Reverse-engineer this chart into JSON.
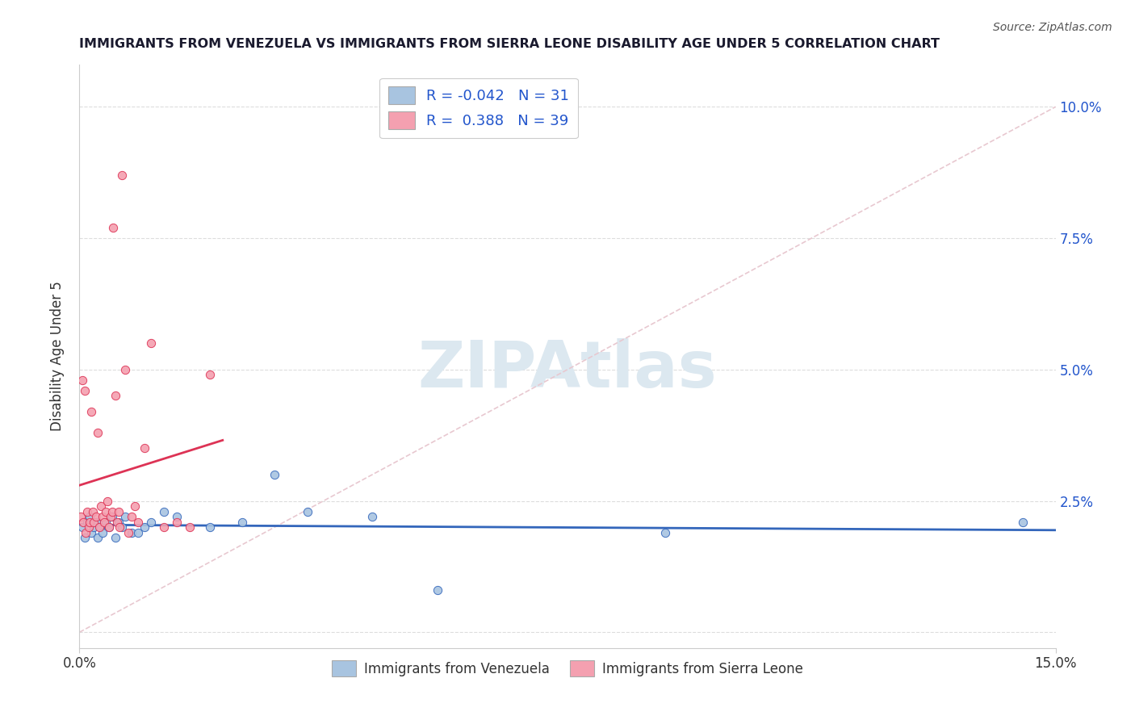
{
  "title": "IMMIGRANTS FROM VENEZUELA VS IMMIGRANTS FROM SIERRA LEONE DISABILITY AGE UNDER 5 CORRELATION CHART",
  "source": "Source: ZipAtlas.com",
  "ylabel": "Disability Age Under 5",
  "xlim": [
    0.0,
    15.0
  ],
  "ylim": [
    -0.3,
    10.8
  ],
  "ytick_vals": [
    0.0,
    2.5,
    5.0,
    7.5,
    10.0
  ],
  "ytick_labels": [
    "",
    "2.5%",
    "5.0%",
    "7.5%",
    "10.0%"
  ],
  "xtick_vals": [
    0.0,
    15.0
  ],
  "xtick_labels": [
    "0.0%",
    "15.0%"
  ],
  "venezuela_R": -0.042,
  "venezuela_N": 31,
  "sierraleone_R": 0.388,
  "sierraleone_N": 39,
  "venezuela_color": "#a8c4e0",
  "sierraleone_color": "#f4a0b0",
  "trend_venezuela_color": "#3366bb",
  "trend_sierraleone_color": "#dd3355",
  "venezuela_x": [
    0.05,
    0.08,
    0.12,
    0.15,
    0.18,
    0.22,
    0.25,
    0.28,
    0.32,
    0.35,
    0.4,
    0.45,
    0.5,
    0.55,
    0.6,
    0.65,
    0.7,
    0.8,
    0.9,
    1.0,
    1.1,
    1.3,
    1.5,
    2.0,
    2.5,
    3.0,
    3.5,
    4.5,
    5.5,
    9.0,
    14.5
  ],
  "venezuela_y": [
    2.0,
    1.8,
    2.1,
    2.2,
    1.9,
    2.0,
    2.1,
    1.8,
    2.0,
    1.9,
    2.1,
    2.0,
    2.2,
    1.8,
    2.1,
    2.0,
    2.2,
    1.9,
    1.9,
    2.0,
    2.1,
    2.3,
    2.2,
    2.0,
    2.1,
    3.0,
    2.3,
    2.2,
    0.8,
    1.9,
    2.1
  ],
  "sierraleone_x": [
    0.02,
    0.04,
    0.06,
    0.08,
    0.1,
    0.12,
    0.14,
    0.16,
    0.18,
    0.2,
    0.22,
    0.25,
    0.28,
    0.3,
    0.33,
    0.35,
    0.38,
    0.4,
    0.43,
    0.45,
    0.48,
    0.5,
    0.52,
    0.55,
    0.58,
    0.6,
    0.62,
    0.65,
    0.7,
    0.75,
    0.8,
    0.85,
    0.9,
    1.0,
    1.1,
    1.3,
    1.5,
    1.7,
    2.0
  ],
  "sierraleone_y": [
    2.2,
    4.8,
    2.1,
    4.6,
    1.9,
    2.3,
    2.0,
    2.1,
    4.2,
    2.3,
    2.1,
    2.2,
    3.8,
    2.0,
    2.4,
    2.2,
    2.1,
    2.3,
    2.5,
    2.0,
    2.2,
    2.3,
    7.7,
    4.5,
    2.1,
    2.3,
    2.0,
    8.7,
    5.0,
    1.9,
    2.2,
    2.4,
    2.1,
    3.5,
    5.5,
    2.0,
    2.1,
    2.0,
    4.9
  ],
  "diag_line_color": "#e8c8d0",
  "watermark": "ZIPAtlas",
  "watermark_color": "#dce8f0",
  "background_color": "#ffffff",
  "grid_color": "#dddddd",
  "title_color": "#1a1a2e",
  "source_color": "#555555",
  "tick_label_color": "#2255cc",
  "axis_label_color": "#333333"
}
